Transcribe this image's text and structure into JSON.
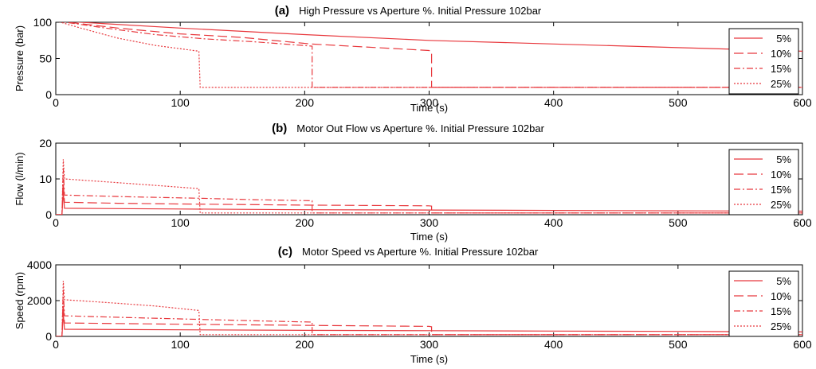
{
  "colors": {
    "series": "#e8383d",
    "axis": "#000000",
    "background": "#ffffff"
  },
  "chart_data": [
    {
      "type": "line",
      "letter": "(a)",
      "title": "High Pressure vs Aperture %. Initial Pressure 102bar",
      "xlabel": "Time (s)",
      "ylabel": "Pressure (bar)",
      "xlim": [
        0,
        600
      ],
      "ylim": [
        0,
        100
      ],
      "xticks": [
        0,
        100,
        200,
        300,
        400,
        500,
        600
      ],
      "yticks": [
        0,
        50,
        100
      ],
      "legend_position": "top-right",
      "series": [
        {
          "name": "5%",
          "dash": "solid",
          "points": [
            [
              0,
              102
            ],
            [
              100,
              92
            ],
            [
              200,
              83
            ],
            [
              300,
              75
            ],
            [
              400,
              70
            ],
            [
              500,
              65
            ],
            [
              600,
              60
            ]
          ]
        },
        {
          "name": "10%",
          "dash": "long",
          "points": [
            [
              0,
              102
            ],
            [
              50,
              92
            ],
            [
              100,
              84
            ],
            [
              150,
              79
            ],
            [
              205,
              70
            ],
            [
              300,
              61
            ],
            [
              302,
              59
            ],
            [
              302,
              10
            ],
            [
              600,
              10
            ]
          ]
        },
        {
          "name": "15%",
          "dash": "dashdot",
          "points": [
            [
              0,
              102
            ],
            [
              40,
              92
            ],
            [
              80,
              83
            ],
            [
              120,
              77
            ],
            [
              160,
              73
            ],
            [
              206,
              67
            ],
            [
              206,
              10
            ],
            [
              600,
              10
            ]
          ]
        },
        {
          "name": "25%",
          "dash": "dotted",
          "points": [
            [
              0,
              102
            ],
            [
              20,
              92
            ],
            [
              50,
              78
            ],
            [
              80,
              68
            ],
            [
              115,
              60
            ],
            [
              116,
              10
            ],
            [
              600,
              10
            ]
          ]
        }
      ]
    },
    {
      "type": "line",
      "letter": "(b)",
      "title": "Motor Out Flow vs Aperture %. Initial Pressure 102bar",
      "xlabel": "Time (s)",
      "ylabel": "Flow (l/min)",
      "xlim": [
        0,
        600
      ],
      "ylim": [
        0,
        20
      ],
      "xticks": [
        0,
        100,
        200,
        300,
        400,
        500,
        600
      ],
      "yticks": [
        0,
        10,
        20
      ],
      "legend_position": "top-right",
      "series": [
        {
          "name": "5%",
          "dash": "solid",
          "points": [
            [
              0,
              0
            ],
            [
              5,
              0
            ],
            [
              6,
              6.5
            ],
            [
              7,
              1.8
            ],
            [
              100,
              1.6
            ],
            [
              200,
              1.4
            ],
            [
              300,
              1.3
            ],
            [
              400,
              1.2
            ],
            [
              500,
              1.1
            ],
            [
              600,
              1.0
            ]
          ]
        },
        {
          "name": "10%",
          "dash": "long",
          "points": [
            [
              0,
              0
            ],
            [
              5,
              0
            ],
            [
              6,
              9
            ],
            [
              7,
              3.5
            ],
            [
              50,
              3.2
            ],
            [
              100,
              3.0
            ],
            [
              200,
              2.7
            ],
            [
              300,
              2.5
            ],
            [
              302,
              2.4
            ],
            [
              302,
              0.5
            ],
            [
              600,
              0.5
            ]
          ]
        },
        {
          "name": "15%",
          "dash": "dashdot",
          "points": [
            [
              0,
              0
            ],
            [
              5,
              0
            ],
            [
              6,
              13
            ],
            [
              7,
              5.5
            ],
            [
              60,
              5.0
            ],
            [
              115,
              4.6
            ],
            [
              160,
              4.2
            ],
            [
              206,
              3.9
            ],
            [
              206,
              0.5
            ],
            [
              600,
              0.5
            ]
          ]
        },
        {
          "name": "25%",
          "dash": "dotted",
          "points": [
            [
              0,
              0
            ],
            [
              5,
              0
            ],
            [
              6,
              15.5
            ],
            [
              7,
              10
            ],
            [
              40,
              9.2
            ],
            [
              80,
              8.2
            ],
            [
              115,
              7.3
            ],
            [
              116,
              0.5
            ],
            [
              600,
              0.5
            ]
          ]
        }
      ]
    },
    {
      "type": "line",
      "letter": "(c)",
      "title": "Motor Speed vs Aperture %. Initial Pressure 102bar",
      "xlabel": "Time (s)",
      "ylabel": "Speed (rpm)",
      "xlim": [
        0,
        600
      ],
      "ylim": [
        0,
        4000
      ],
      "xticks": [
        0,
        100,
        200,
        300,
        400,
        500,
        600
      ],
      "yticks": [
        0,
        2000,
        4000
      ],
      "legend_position": "top-right",
      "series": [
        {
          "name": "5%",
          "dash": "solid",
          "points": [
            [
              0,
              0
            ],
            [
              5,
              0
            ],
            [
              6,
              1300
            ],
            [
              7,
              400
            ],
            [
              100,
              370
            ],
            [
              200,
              340
            ],
            [
              300,
              320
            ],
            [
              400,
              300
            ],
            [
              500,
              280
            ],
            [
              600,
              250
            ]
          ]
        },
        {
          "name": "10%",
          "dash": "long",
          "points": [
            [
              0,
              0
            ],
            [
              5,
              0
            ],
            [
              6,
              1800
            ],
            [
              7,
              750
            ],
            [
              100,
              680
            ],
            [
              200,
              620
            ],
            [
              300,
              560
            ],
            [
              302,
              540
            ],
            [
              302,
              100
            ],
            [
              600,
              100
            ]
          ]
        },
        {
          "name": "15%",
          "dash": "dashdot",
          "points": [
            [
              0,
              0
            ],
            [
              5,
              0
            ],
            [
              6,
              2600
            ],
            [
              7,
              1150
            ],
            [
              60,
              1050
            ],
            [
              115,
              950
            ],
            [
              160,
              870
            ],
            [
              206,
              800
            ],
            [
              206,
              100
            ],
            [
              600,
              100
            ]
          ]
        },
        {
          "name": "25%",
          "dash": "dotted",
          "points": [
            [
              0,
              0
            ],
            [
              5,
              0
            ],
            [
              6,
              3100
            ],
            [
              7,
              2050
            ],
            [
              40,
              1900
            ],
            [
              80,
              1700
            ],
            [
              115,
              1450
            ],
            [
              116,
              100
            ],
            [
              600,
              100
            ]
          ]
        }
      ]
    }
  ]
}
